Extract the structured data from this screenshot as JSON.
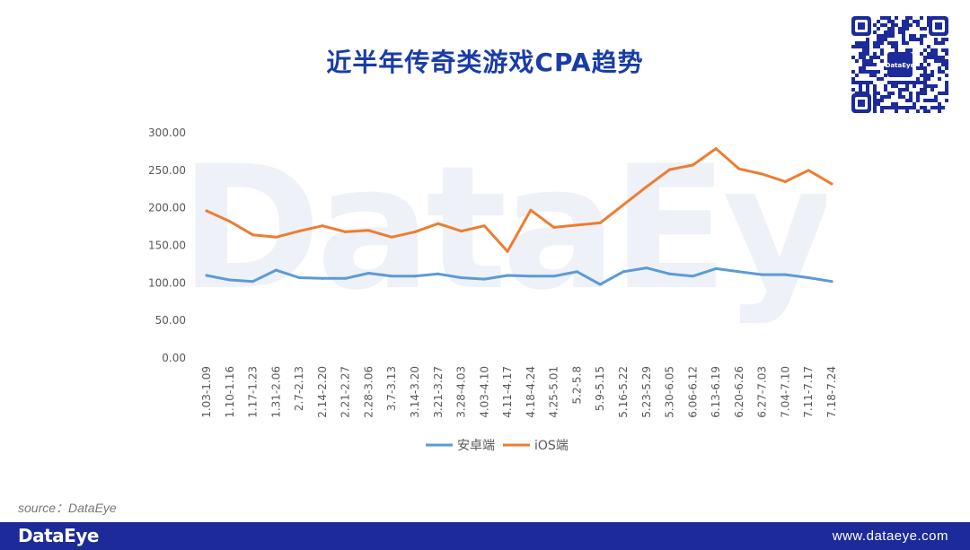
{
  "header": {
    "title": "近半年传奇类游戏CPA趋势"
  },
  "watermark": "DataEye",
  "qr": {
    "center_label": "DataEye"
  },
  "source": "source：DataEye",
  "footer": {
    "logo": "DataEye",
    "url": "www.dataeye.com"
  },
  "colors": {
    "android": "#5b9bd5",
    "ios": "#ed7d31",
    "title": "#1a3ca8",
    "footer": "#1c2b99"
  },
  "chart_data": {
    "type": "line",
    "title": "近半年传奇类游戏CPA趋势",
    "categories": [
      "1.03-1.09",
      "1.10-1.16",
      "1.17-1.23",
      "1.31-2.06",
      "2.7-2.13",
      "2.14-2.20",
      "2.21-2.27",
      "2.28-3.06",
      "3.7-3.13",
      "3.14-3.20",
      "3.21-3.27",
      "3.28-4.03",
      "4.03-4.10",
      "4.11-4.17",
      "4.18-4.24",
      "4.25-5.01",
      "5.2-5.8",
      "5.9-5.15",
      "5.16-5.22",
      "5.23-5.29",
      "5.30-6.05",
      "6.06-6.12",
      "6.13-6.19",
      "6.20-6.26",
      "6.27-7.03",
      "7.04-7.10",
      "7.11-7.17",
      "7.18-7.24"
    ],
    "y_ticks": [
      "0.00",
      "50.00",
      "100.00",
      "150.00",
      "200.00",
      "250.00",
      "300.00"
    ],
    "ylim": [
      0,
      300
    ],
    "series": [
      {
        "name": "安卓端",
        "color": "#5b9bd5",
        "values": [
          110,
          104,
          102,
          117,
          107,
          106,
          106,
          113,
          109,
          109,
          112,
          107,
          105,
          110,
          109,
          109,
          115,
          98,
          115,
          120,
          112,
          109,
          119,
          115,
          111,
          111,
          107,
          102
        ]
      },
      {
        "name": "iOS端",
        "color": "#ed7d31",
        "values": [
          196,
          182,
          164,
          161,
          169,
          176,
          168,
          170,
          161,
          168,
          179,
          169,
          176,
          142,
          197,
          174,
          177,
          180,
          204,
          228,
          251,
          257,
          279,
          252,
          245,
          235,
          250,
          232
        ]
      }
    ],
    "legend": {
      "position": "bottom"
    },
    "grid": false
  }
}
